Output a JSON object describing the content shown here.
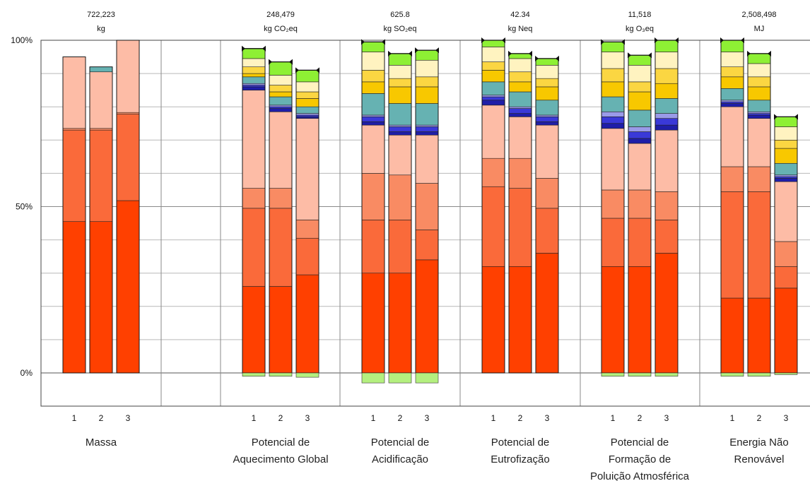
{
  "chart_data": {
    "type": "bar",
    "stacked": true,
    "title": "",
    "xlabel": "",
    "ylabel": "",
    "ylim": [
      -3,
      100
    ],
    "y_ticks": [
      "0%",
      "50%",
      "100%"
    ],
    "y_tick_values": [
      0,
      50,
      100
    ],
    "grid": true,
    "segment_colors": [
      "#ff4000",
      "#fa6a3a",
      "#f98b63",
      "#fdbca6",
      "#1f1ea8",
      "#3a39d8",
      "#9a9ae8",
      "#66b2b2",
      "#f8c800",
      "#fbd642",
      "#fff3c0",
      "#8ef034"
    ],
    "groups": [
      {
        "label": "Massa",
        "header_value": "722,223",
        "header_unit": "kg",
        "bar_labels": [
          "1",
          "2",
          "3"
        ],
        "bars": [
          {
            "segments": [
              [
                45.5,
                "#ff4000"
              ],
              [
                27.5,
                "#fa6a3a"
              ],
              [
                0.5,
                "#f98b63"
              ],
              [
                21.5,
                "#fdbca6"
              ]
            ]
          },
          {
            "segments": [
              [
                45.5,
                "#ff4000"
              ],
              [
                27.5,
                "#fa6a3a"
              ],
              [
                0.5,
                "#f98b63"
              ],
              [
                17,
                "#fdbca6"
              ],
              [
                1.5,
                "#66b2b2"
              ]
            ]
          },
          {
            "segments": [
              [
                51.8,
                "#ff4000"
              ],
              [
                26,
                "#fa6a3a"
              ],
              [
                0.5,
                "#f98b63"
              ],
              [
                21.7,
                "#fdbca6"
              ]
            ]
          }
        ]
      },
      {
        "label": "Potencial de Aquecimento Global",
        "label_lines": [
          "Potencial de",
          "Aquecimento  Global"
        ],
        "header_value": "248,479",
        "header_unit": "kg CO₂eq",
        "bar_labels": [
          "1",
          "2",
          "3"
        ],
        "bars": [
          {
            "segments": [
              [
                26,
                "#ff4000"
              ],
              [
                23.5,
                "#fa6a3a"
              ],
              [
                6,
                "#f98b63"
              ],
              [
                29.5,
                "#fdbca6"
              ],
              [
                1,
                "#1f1ea8"
              ],
              [
                0.5,
                "#3a39d8"
              ],
              [
                0.5,
                "#9a9ae8"
              ],
              [
                2,
                "#66b2b2"
              ],
              [
                1,
                "#f8c800"
              ],
              [
                2,
                "#fbd642"
              ],
              [
                2.5,
                "#fff3c0"
              ],
              [
                3,
                "#8ef034"
              ]
            ],
            "neg": 1
          },
          {
            "segments": [
              [
                26,
                "#ff4000"
              ],
              [
                23.5,
                "#fa6a3a"
              ],
              [
                6,
                "#f98b63"
              ],
              [
                23,
                "#fdbca6"
              ],
              [
                1,
                "#1f1ea8"
              ],
              [
                0.5,
                "#3a39d8"
              ],
              [
                0.5,
                "#9a9ae8"
              ],
              [
                2.5,
                "#66b2b2"
              ],
              [
                1.5,
                "#f8c800"
              ],
              [
                2,
                "#fbd642"
              ],
              [
                3,
                "#fff3c0"
              ],
              [
                4,
                "#8ef034"
              ]
            ],
            "neg": 1
          },
          {
            "segments": [
              [
                29.5,
                "#ff4000"
              ],
              [
                11,
                "#fa6a3a"
              ],
              [
                5.5,
                "#f98b63"
              ],
              [
                30.5,
                "#fdbca6"
              ],
              [
                0.5,
                "#1f1ea8"
              ],
              [
                0.5,
                "#3a39d8"
              ],
              [
                0.5,
                "#9a9ae8"
              ],
              [
                2,
                "#66b2b2"
              ],
              [
                2.5,
                "#f8c800"
              ],
              [
                2,
                "#fbd642"
              ],
              [
                3,
                "#fff3c0"
              ],
              [
                3.5,
                "#8ef034"
              ]
            ],
            "neg": 1.3
          }
        ]
      },
      {
        "label": "Potencial de Acidificação",
        "label_lines": [
          "Potencial de",
          "Acidificação"
        ],
        "header_value": "625.8",
        "header_unit": "kg SO₂eq",
        "bar_labels": [
          "1",
          "2",
          "3"
        ],
        "bars": [
          {
            "segments": [
              [
                30,
                "#ff4000"
              ],
              [
                16,
                "#fa6a3a"
              ],
              [
                14,
                "#f98b63"
              ],
              [
                14.5,
                "#fdbca6"
              ],
              [
                1,
                "#1f1ea8"
              ],
              [
                1.5,
                "#3a39d8"
              ],
              [
                0.5,
                "#9a9ae8"
              ],
              [
                6.5,
                "#66b2b2"
              ],
              [
                3.5,
                "#f8c800"
              ],
              [
                3.5,
                "#fbd642"
              ],
              [
                5.5,
                "#fff3c0"
              ],
              [
                3,
                "#8ef034"
              ]
            ],
            "neg": 3
          },
          {
            "segments": [
              [
                30,
                "#ff4000"
              ],
              [
                16,
                "#fa6a3a"
              ],
              [
                13.5,
                "#f98b63"
              ],
              [
                12,
                "#fdbca6"
              ],
              [
                1,
                "#1f1ea8"
              ],
              [
                1.5,
                "#3a39d8"
              ],
              [
                0.5,
                "#9a9ae8"
              ],
              [
                6.5,
                "#66b2b2"
              ],
              [
                5,
                "#f8c800"
              ],
              [
                2.5,
                "#fbd642"
              ],
              [
                4,
                "#fff3c0"
              ],
              [
                3.5,
                "#8ef034"
              ]
            ],
            "neg": 3
          },
          {
            "segments": [
              [
                34,
                "#ff4000"
              ],
              [
                9,
                "#fa6a3a"
              ],
              [
                14,
                "#f98b63"
              ],
              [
                14.5,
                "#fdbca6"
              ],
              [
                1,
                "#1f1ea8"
              ],
              [
                1.5,
                "#3a39d8"
              ],
              [
                0.5,
                "#9a9ae8"
              ],
              [
                6.5,
                "#66b2b2"
              ],
              [
                5,
                "#f8c800"
              ],
              [
                3,
                "#fbd642"
              ],
              [
                5,
                "#fff3c0"
              ],
              [
                3,
                "#8ef034"
              ]
            ],
            "neg": 3
          }
        ]
      },
      {
        "label": "Potencial de Eutrofização",
        "label_lines": [
          "Potencial de",
          "Eutrofização"
        ],
        "header_value": "42.34",
        "header_unit": "kg Neq",
        "bar_labels": [
          "1",
          "2",
          "3"
        ],
        "bars": [
          {
            "segments": [
              [
                32,
                "#ff4000"
              ],
              [
                24,
                "#fa6a3a"
              ],
              [
                8.5,
                "#f98b63"
              ],
              [
                16,
                "#fdbca6"
              ],
              [
                1.5,
                "#1f1ea8"
              ],
              [
                1,
                "#3a39d8"
              ],
              [
                0.5,
                "#9a9ae8"
              ],
              [
                4,
                "#66b2b2"
              ],
              [
                3.5,
                "#f8c800"
              ],
              [
                2.5,
                "#fbd642"
              ],
              [
                4.5,
                "#fff3c0"
              ],
              [
                2,
                "#8ef034"
              ]
            ]
          },
          {
            "segments": [
              [
                32,
                "#ff4000"
              ],
              [
                23.5,
                "#fa6a3a"
              ],
              [
                9,
                "#f98b63"
              ],
              [
                12.5,
                "#fdbca6"
              ],
              [
                1,
                "#1f1ea8"
              ],
              [
                1.5,
                "#3a39d8"
              ],
              [
                0.5,
                "#9a9ae8"
              ],
              [
                4.5,
                "#66b2b2"
              ],
              [
                3,
                "#f8c800"
              ],
              [
                3,
                "#fbd642"
              ],
              [
                4,
                "#fff3c0"
              ],
              [
                1.5,
                "#8ef034"
              ]
            ]
          },
          {
            "segments": [
              [
                36,
                "#ff4000"
              ],
              [
                13.5,
                "#fa6a3a"
              ],
              [
                9,
                "#f98b63"
              ],
              [
                16,
                "#fdbca6"
              ],
              [
                1,
                "#1f1ea8"
              ],
              [
                1.5,
                "#3a39d8"
              ],
              [
                0.5,
                "#9a9ae8"
              ],
              [
                4.5,
                "#66b2b2"
              ],
              [
                4,
                "#f8c800"
              ],
              [
                2.5,
                "#fbd642"
              ],
              [
                4,
                "#fff3c0"
              ],
              [
                2,
                "#8ef034"
              ]
            ]
          }
        ]
      },
      {
        "label": "Potencial de Formação de Poluição Atmosférica",
        "label_lines": [
          "Potencial de",
          "Formação de",
          "Poluição Atmosférica"
        ],
        "header_value": "11,518",
        "header_unit": "kg O₃eq",
        "bar_labels": [
          "1",
          "2",
          "3"
        ],
        "bars": [
          {
            "segments": [
              [
                32,
                "#ff4000"
              ],
              [
                14.5,
                "#fa6a3a"
              ],
              [
                8.5,
                "#f98b63"
              ],
              [
                18.5,
                "#fdbca6"
              ],
              [
                1.5,
                "#1f1ea8"
              ],
              [
                2,
                "#3a39d8"
              ],
              [
                1.5,
                "#9a9ae8"
              ],
              [
                4.5,
                "#66b2b2"
              ],
              [
                4.5,
                "#f8c800"
              ],
              [
                4,
                "#fbd642"
              ],
              [
                5,
                "#fff3c0"
              ],
              [
                3,
                "#8ef034"
              ]
            ],
            "neg": 1
          },
          {
            "segments": [
              [
                32,
                "#ff4000"
              ],
              [
                14.5,
                "#fa6a3a"
              ],
              [
                8.5,
                "#f98b63"
              ],
              [
                14,
                "#fdbca6"
              ],
              [
                1.5,
                "#1f1ea8"
              ],
              [
                2,
                "#3a39d8"
              ],
              [
                1.5,
                "#9a9ae8"
              ],
              [
                5,
                "#66b2b2"
              ],
              [
                5.5,
                "#f8c800"
              ],
              [
                3,
                "#fbd642"
              ],
              [
                5,
                "#fff3c0"
              ],
              [
                3,
                "#8ef034"
              ]
            ],
            "neg": 1
          },
          {
            "segments": [
              [
                36,
                "#ff4000"
              ],
              [
                10,
                "#fa6a3a"
              ],
              [
                8.5,
                "#f98b63"
              ],
              [
                18.5,
                "#fdbca6"
              ],
              [
                1.5,
                "#1f1ea8"
              ],
              [
                2,
                "#3a39d8"
              ],
              [
                1.5,
                "#9a9ae8"
              ],
              [
                4.5,
                "#66b2b2"
              ],
              [
                4.5,
                "#f8c800"
              ],
              [
                4.5,
                "#fbd642"
              ],
              [
                5,
                "#fff3c0"
              ],
              [
                3.5,
                "#8ef034"
              ]
            ],
            "neg": 1
          }
        ]
      },
      {
        "label": "Energia Não Renovável",
        "label_lines": [
          "Energia Não",
          "Renovável"
        ],
        "header_value": "2,508,498",
        "header_unit": "MJ",
        "bar_labels": [
          "1",
          "2",
          "3"
        ],
        "bars": [
          {
            "segments": [
              [
                22.5,
                "#ff4000"
              ],
              [
                32,
                "#fa6a3a"
              ],
              [
                7.5,
                "#f98b63"
              ],
              [
                18,
                "#fdbca6"
              ],
              [
                1,
                "#1f1ea8"
              ],
              [
                0.5,
                "#3a39d8"
              ],
              [
                0.5,
                "#9a9ae8"
              ],
              [
                3.5,
                "#66b2b2"
              ],
              [
                3.5,
                "#f8c800"
              ],
              [
                3,
                "#fbd642"
              ],
              [
                4.5,
                "#fff3c0"
              ],
              [
                3.5,
                "#8ef034"
              ]
            ],
            "neg": 1
          },
          {
            "segments": [
              [
                22.5,
                "#ff4000"
              ],
              [
                32,
                "#fa6a3a"
              ],
              [
                7.5,
                "#f98b63"
              ],
              [
                14.5,
                "#fdbca6"
              ],
              [
                1,
                "#1f1ea8"
              ],
              [
                0.5,
                "#3a39d8"
              ],
              [
                0.5,
                "#9a9ae8"
              ],
              [
                3.5,
                "#66b2b2"
              ],
              [
                4,
                "#f8c800"
              ],
              [
                3,
                "#fbd642"
              ],
              [
                4,
                "#fff3c0"
              ],
              [
                3,
                "#8ef034"
              ]
            ],
            "neg": 1
          },
          {
            "segments": [
              [
                25.5,
                "#ff4000"
              ],
              [
                6.5,
                "#fa6a3a"
              ],
              [
                7.5,
                "#f98b63"
              ],
              [
                18,
                "#fdbca6"
              ],
              [
                1,
                "#1f1ea8"
              ],
              [
                0.5,
                "#3a39d8"
              ],
              [
                0.5,
                "#9a9ae8"
              ],
              [
                3.5,
                "#66b2b2"
              ],
              [
                4.5,
                "#f8c800"
              ],
              [
                2.5,
                "#fbd642"
              ],
              [
                4,
                "#fff3c0"
              ],
              [
                3,
                "#8ef034"
              ]
            ],
            "neg": 0.5
          }
        ]
      }
    ]
  }
}
